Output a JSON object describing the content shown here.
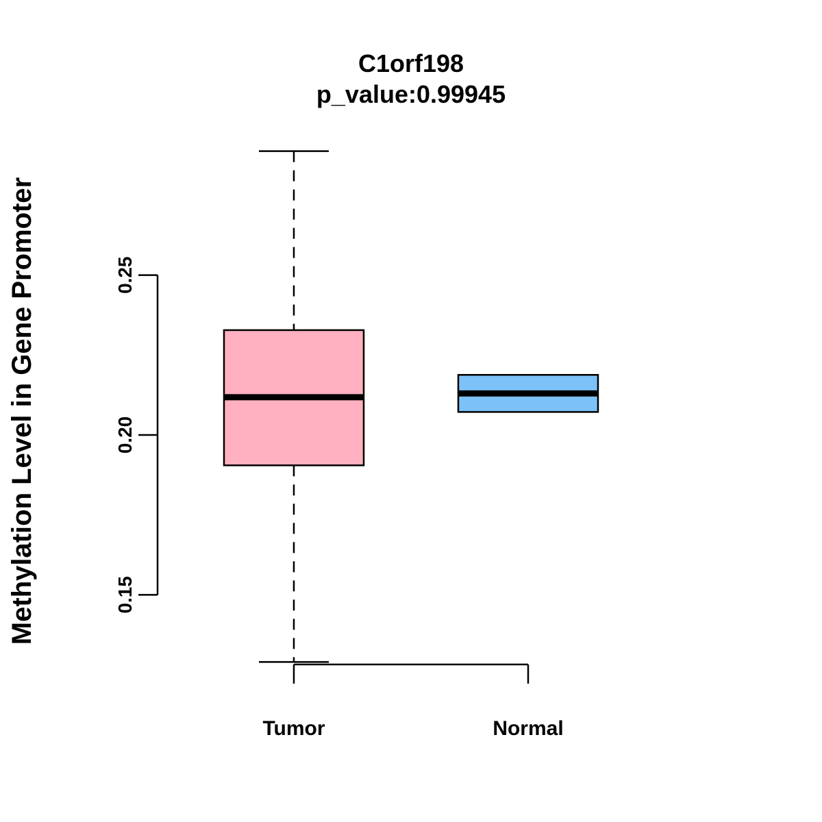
{
  "chart_data": {
    "type": "boxplot",
    "title": "C1orf198",
    "subtitle": "p_value:0.99945",
    "ylabel": "Methylation Level in Gene Promoter",
    "xlabel": "",
    "ylim": [
      0.125,
      0.29
    ],
    "yticks": [
      0.15,
      0.2,
      0.25
    ],
    "ytick_labels": [
      "0.15",
      "0.20",
      "0.25"
    ],
    "groups": [
      {
        "name": "Tumor",
        "color": "#FFB0C1",
        "min": 0.129,
        "q1": 0.1905,
        "median": 0.2118,
        "q3": 0.2328,
        "max": 0.2888
      },
      {
        "name": "Normal",
        "color": "#7CC2F8",
        "min": 0.2072,
        "q1": 0.2072,
        "median": 0.213,
        "q3": 0.2188,
        "max": 0.2188
      }
    ]
  }
}
